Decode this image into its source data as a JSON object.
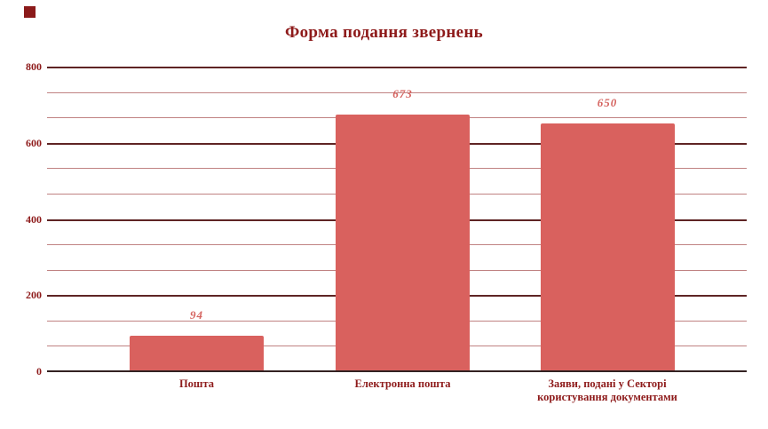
{
  "page": {
    "background": "#ffffff"
  },
  "decoration": {
    "corner_square_color": "#8b1a1a"
  },
  "chart_data": {
    "type": "bar",
    "title": "Форма подання звернень",
    "categories": [
      "Пошта",
      "Електронна пошта",
      "Заяви, подані у Секторі користування документами"
    ],
    "values": [
      94,
      673,
      650
    ],
    "data_labels": [
      "94",
      "673",
      "650"
    ],
    "xlabel": "",
    "ylabel": "",
    "ylim": [
      0,
      800
    ],
    "yticks": [
      0,
      200,
      400,
      600,
      800
    ],
    "ytick_labels": [
      "0",
      "200",
      "400",
      "600",
      "800"
    ],
    "minor_gridlines_between_majors": 2,
    "grid": "horizontal",
    "legend_position": "none",
    "colors": {
      "bar_fill": "#d9615e",
      "title_text": "#8e1b1b",
      "axis_text": "#8e1b1b",
      "category_text": "#8e1b1b",
      "data_label_text": "#d5635f",
      "major_gridline": "#5f2424",
      "minor_gridline": "#c08282",
      "axis_line": "#332222"
    }
  }
}
